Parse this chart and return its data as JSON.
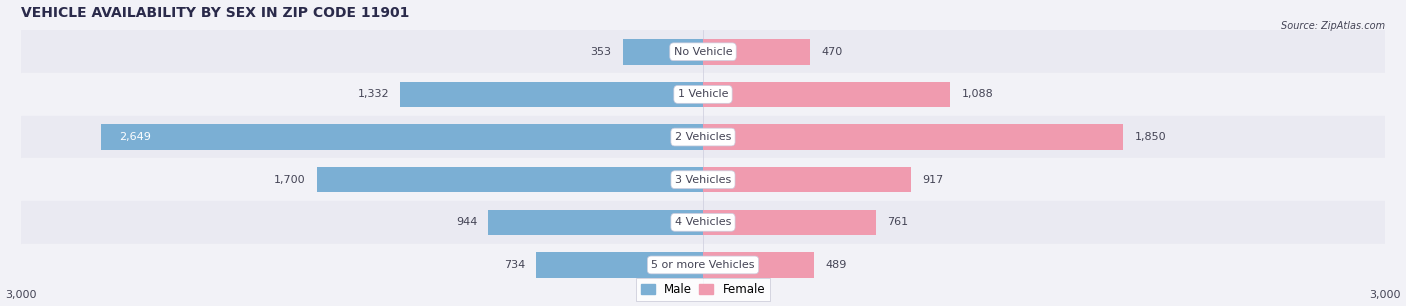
{
  "title": "VEHICLE AVAILABILITY BY SEX IN ZIP CODE 11901",
  "source": "Source: ZipAtlas.com",
  "categories": [
    "No Vehicle",
    "1 Vehicle",
    "2 Vehicles",
    "3 Vehicles",
    "4 Vehicles",
    "5 or more Vehicles"
  ],
  "male_values": [
    353,
    1332,
    2649,
    1700,
    944,
    734
  ],
  "female_values": [
    470,
    1088,
    1850,
    917,
    761,
    489
  ],
  "male_color": "#7bafd4",
  "female_color": "#f09baf",
  "xlim": 3000,
  "bar_height": 0.6,
  "background_color": "#f2f2f7",
  "row_bg_colors": [
    "#eaeaf2",
    "#f2f2f7"
  ],
  "title_fontsize": 10,
  "label_fontsize": 8,
  "axis_label_fontsize": 8,
  "legend_fontsize": 8.5,
  "text_color_dark": "#444455",
  "text_color_white": "#ffffff",
  "white_label_threshold": 0.78
}
